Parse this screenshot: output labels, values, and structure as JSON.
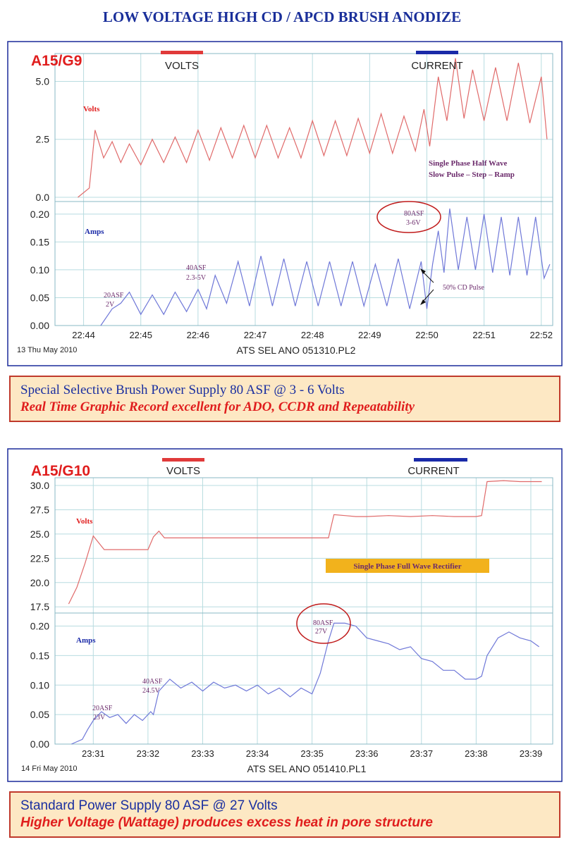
{
  "page": {
    "title": "LOW VOLTAGE HIGH CD / APCD BRUSH ANODIZE"
  },
  "banners": [
    {
      "line1": "Special Selective Brush Power Supply 80 ASF @ 3 - 6 Volts",
      "line2": "Real Time Graphic Record excellent for ADO, CCDR and Repeatability"
    },
    {
      "line1": "Standard Power Supply 80 ASF @ 27 Volts",
      "line2": "Higher Voltage (Wattage) produces excess heat in pore structure"
    }
  ],
  "colors": {
    "volts": "#e03a3a",
    "current": "#1a2aa8",
    "volts_line": "#e06a6a",
    "amps_line": "#6f78d8",
    "grid": "#b8dce0",
    "label_red": "#e01d1d",
    "frame": "#1a2a9a",
    "annotation": "#6b2a6b"
  },
  "chart_data": [
    {
      "type": "line",
      "chart_label": "A15/G9",
      "legend": {
        "volts": "VOLTS",
        "current": "CURRENT"
      },
      "date_label": "13 Thu May 2010",
      "file_label": "ATS SEL ANO 051310.PL2",
      "x_ticks": [
        "22:44",
        "22:45",
        "22:46",
        "22:47",
        "22:48",
        "22:49",
        "22:50",
        "22:51",
        "22:52"
      ],
      "x_range": [
        "22:43.5",
        "22:52.2"
      ],
      "volts": {
        "name": "Volts",
        "ylim": [
          0,
          6.2
        ],
        "ticks": [
          "0.0",
          "2.5",
          "5.0"
        ],
        "tick_values": [
          0,
          2.5,
          5.0
        ],
        "x": [
          "22:43.9",
          "22:44.1",
          "22:44.2",
          "22:44.35",
          "22:44.5",
          "22:44.65",
          "22:44.8",
          "22:45.0",
          "22:45.2",
          "22:45.4",
          "22:45.6",
          "22:45.8",
          "22:46.0",
          "22:46.2",
          "22:46.4",
          "22:46.6",
          "22:46.8",
          "22:47.0",
          "22:47.2",
          "22:47.4",
          "22:47.6",
          "22:47.8",
          "22:48.0",
          "22:48.2",
          "22:48.4",
          "22:48.6",
          "22:48.8",
          "22:49.0",
          "22:49.2",
          "22:49.4",
          "22:49.6",
          "22:49.8",
          "22:49.95",
          "22:50.05",
          "22:50.2",
          "22:50.35",
          "22:50.5",
          "22:50.65",
          "22:50.8",
          "22:51.0",
          "22:51.2",
          "22:51.4",
          "22:51.6",
          "22:51.8",
          "22:52.0",
          "22:52.1"
        ],
        "y": [
          0,
          0.4,
          2.9,
          1.7,
          2.4,
          1.5,
          2.3,
          1.4,
          2.5,
          1.5,
          2.6,
          1.5,
          2.9,
          1.6,
          3.0,
          1.7,
          3.1,
          1.7,
          3.1,
          1.7,
          3.0,
          1.7,
          3.3,
          1.8,
          3.3,
          1.8,
          3.4,
          1.9,
          3.6,
          1.9,
          3.5,
          2.0,
          3.8,
          2.2,
          5.2,
          3.3,
          6.0,
          3.4,
          5.5,
          3.3,
          5.6,
          3.3,
          5.8,
          3.2,
          5.2,
          2.5
        ]
      },
      "amps": {
        "name": "Amps",
        "ylim": [
          0,
          0.215
        ],
        "ticks": [
          "0.00",
          "0.05",
          "0.10",
          "0.15",
          "0.20"
        ],
        "tick_values": [
          0,
          0.05,
          0.1,
          0.15,
          0.2
        ],
        "x": [
          "22:44.3",
          "22:44.5",
          "22:44.65",
          "22:44.8",
          "22:45.0",
          "22:45.2",
          "22:45.4",
          "22:45.6",
          "22:45.8",
          "22:46.0",
          "22:46.15",
          "22:46.3",
          "22:46.5",
          "22:46.7",
          "22:46.9",
          "22:47.1",
          "22:47.3",
          "22:47.5",
          "22:47.7",
          "22:47.9",
          "22:48.1",
          "22:48.3",
          "22:48.5",
          "22:48.7",
          "22:48.9",
          "22:49.1",
          "22:49.3",
          "22:49.5",
          "22:49.7",
          "22:49.9",
          "22:50.0",
          "22:50.1",
          "22:50.2",
          "22:50.3",
          "22:50.4",
          "22:50.55",
          "22:50.7",
          "22:50.85",
          "22:51.0",
          "22:51.15",
          "22:51.3",
          "22:51.45",
          "22:51.6",
          "22:51.75",
          "22:51.9",
          "22:52.05",
          "22:52.15"
        ],
        "y": [
          0,
          0.03,
          0.04,
          0.06,
          0.02,
          0.055,
          0.02,
          0.06,
          0.025,
          0.065,
          0.03,
          0.09,
          0.04,
          0.115,
          0.035,
          0.125,
          0.035,
          0.12,
          0.035,
          0.115,
          0.035,
          0.115,
          0.035,
          0.115,
          0.035,
          0.11,
          0.035,
          0.12,
          0.03,
          0.115,
          0.03,
          0.11,
          0.17,
          0.095,
          0.21,
          0.1,
          0.195,
          0.1,
          0.2,
          0.095,
          0.195,
          0.09,
          0.195,
          0.09,
          0.195,
          0.085,
          0.11
        ]
      },
      "annotations": {
        "volts_note_line1": "Single Phase Half Wave",
        "volts_note_line2": "Slow Pulse – Step – Ramp",
        "a1_line1": "20ASF",
        "a1_line2": "2V",
        "a2_line1": "40ASF",
        "a2_line2": "2.3-5V",
        "a3_line1": "80ASF",
        "a3_line2": "3-6V",
        "pulse_note": "50% CD Pulse"
      }
    },
    {
      "type": "line",
      "chart_label": "A15/G10",
      "legend": {
        "volts": "VOLTS",
        "current": "CURRENT"
      },
      "date_label": "14 Fri May 2010",
      "file_label": "ATS SEL ANO 051410.PL1",
      "x_ticks": [
        "23:31",
        "23:32",
        "23:33",
        "23:34",
        "23:35",
        "23:36",
        "23:37",
        "23:38",
        "23:39"
      ],
      "x_range": [
        "23:30.3",
        "23:39.4"
      ],
      "volts": {
        "name": "Volts",
        "ylim": [
          17.3,
          30.8
        ],
        "ticks": [
          "17.5",
          "20.0",
          "22.5",
          "25.0",
          "27.5",
          "30.0"
        ],
        "tick_values": [
          17.5,
          20.0,
          22.5,
          25.0,
          27.5,
          30.0
        ],
        "x": [
          "23:30.55",
          "23:30.7",
          "23:30.85",
          "23:31.0",
          "23:31.2",
          "23:31.4",
          "23:31.6",
          "23:31.8",
          "23:32.0",
          "23:32.1",
          "23:32.2",
          "23:32.3",
          "23:32.6",
          "23:33.0",
          "23:33.4",
          "23:33.8",
          "23:34.2",
          "23:34.6",
          "23:35.0",
          "23:35.3",
          "23:35.4",
          "23:35.6",
          "23:35.8",
          "23:36.0",
          "23:36.4",
          "23:36.8",
          "23:37.2",
          "23:37.6",
          "23:38.0",
          "23:38.1",
          "23:38.2",
          "23:38.5",
          "23:38.8",
          "23:39.2"
        ],
        "y": [
          17.8,
          19.5,
          22.0,
          24.8,
          23.4,
          23.4,
          23.4,
          23.4,
          23.4,
          24.7,
          25.3,
          24.6,
          24.6,
          24.6,
          24.6,
          24.6,
          24.6,
          24.6,
          24.6,
          24.6,
          27.0,
          26.9,
          26.8,
          26.8,
          26.9,
          26.8,
          26.9,
          26.8,
          26.8,
          26.9,
          30.4,
          30.5,
          30.4,
          30.4
        ]
      },
      "amps": {
        "name": "Amps",
        "ylim": [
          0,
          0.215
        ],
        "ticks": [
          "0.00",
          "0.05",
          "0.10",
          "0.15",
          "0.20"
        ],
        "tick_values": [
          0,
          0.05,
          0.1,
          0.15,
          0.2
        ],
        "x": [
          "23:30.6",
          "23:30.8",
          "23:30.9",
          "23:31.0",
          "23:31.15",
          "23:31.3",
          "23:31.45",
          "23:31.6",
          "23:31.75",
          "23:31.9",
          "23:32.05",
          "23:32.1",
          "23:32.2",
          "23:32.4",
          "23:32.6",
          "23:32.8",
          "23:33.0",
          "23:33.2",
          "23:33.4",
          "23:33.6",
          "23:33.8",
          "23:34.0",
          "23:34.2",
          "23:34.4",
          "23:34.6",
          "23:34.8",
          "23:35.0",
          "23:35.15",
          "23:35.3",
          "23:35.4",
          "23:35.6",
          "23:35.8",
          "23:36.0",
          "23:36.2",
          "23:36.4",
          "23:36.6",
          "23:36.8",
          "23:37.0",
          "23:37.2",
          "23:37.4",
          "23:37.6",
          "23:37.8",
          "23:38.0",
          "23:38.1",
          "23:38.2",
          "23:38.4",
          "23:38.6",
          "23:38.8",
          "23:39.0",
          "23:39.15"
        ],
        "y": [
          0,
          0.008,
          0.025,
          0.04,
          0.055,
          0.045,
          0.05,
          0.035,
          0.05,
          0.04,
          0.055,
          0.05,
          0.09,
          0.11,
          0.095,
          0.105,
          0.09,
          0.105,
          0.095,
          0.1,
          0.09,
          0.1,
          0.085,
          0.095,
          0.08,
          0.095,
          0.085,
          0.12,
          0.175,
          0.205,
          0.205,
          0.2,
          0.18,
          0.175,
          0.17,
          0.16,
          0.165,
          0.145,
          0.14,
          0.125,
          0.125,
          0.11,
          0.11,
          0.115,
          0.15,
          0.18,
          0.19,
          0.18,
          0.175,
          0.165
        ]
      },
      "annotations": {
        "volts_note": "Single Phase Full Wave Rectifier",
        "a1_line1": "20ASF",
        "a1_line2": "23V",
        "a2_line1": "40ASF",
        "a2_line2": "24.5V",
        "a3_line1": "80ASF",
        "a3_line2": "27V"
      }
    }
  ]
}
